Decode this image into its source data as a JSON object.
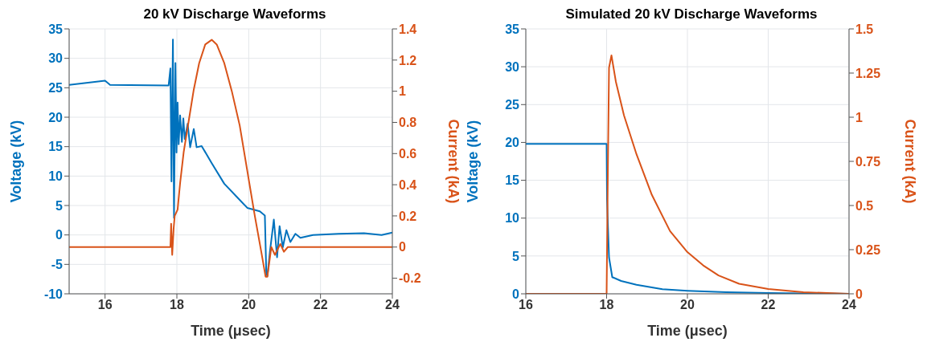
{
  "chart_data": [
    {
      "type": "line",
      "title": "20 kV Discharge Waveforms",
      "xlabel": "Time (μsec)",
      "ylabel": "Voltage (kV)",
      "y2label": "Current (kA)",
      "xlim": [
        15,
        24
      ],
      "xticks": [
        16,
        18,
        20,
        22,
        24
      ],
      "ylim": [
        -10,
        35
      ],
      "yticks": [
        -10,
        -5,
        0,
        5,
        10,
        15,
        20,
        25,
        30,
        35
      ],
      "y2lim": [
        -0.3,
        1.4
      ],
      "y2ticks": [
        -0.2,
        0,
        0.2,
        0.4,
        0.6,
        0.8,
        1,
        1.2,
        1.4
      ],
      "grid": true,
      "series": [
        {
          "color": "#0072bd",
          "axis": "y",
          "x": [
            15,
            16,
            16.14,
            17.77,
            17.82,
            17.85,
            17.89,
            17.92,
            17.96,
            17.99,
            18.02,
            18.05,
            18.09,
            18.14,
            18.18,
            18.22,
            18.3,
            18.37,
            18.47,
            18.55,
            18.69,
            18.97,
            19.32,
            19.68,
            19.96,
            20.31,
            20.45,
            20.49,
            20.52,
            20.59,
            20.7,
            20.79,
            20.86,
            20.95,
            21.05,
            21.16,
            21.3,
            21.44,
            21.79,
            22.5,
            23.21,
            23.7,
            24
          ],
          "values": [
            25.5,
            26.2,
            25.5,
            25.4,
            28.3,
            9.1,
            33.2,
            2.9,
            29.2,
            14,
            22.5,
            15.4,
            20.3,
            15.8,
            19.8,
            16.3,
            18.9,
            14.9,
            18,
            14.9,
            15.1,
            12.2,
            8.7,
            6.4,
            4.6,
            4,
            3.3,
            -6.5,
            -7,
            -2.9,
            2.6,
            -3.8,
            1.5,
            -2.1,
            0.8,
            -1.2,
            0.2,
            -0.5,
            0,
            0.2,
            0.3,
            0,
            0.4
          ]
        },
        {
          "color": "#d95319",
          "axis": "y2",
          "x": [
            15,
            17.82,
            17.84,
            17.87,
            17.91,
            17.94,
            18.02,
            18.09,
            18.19,
            18.33,
            18.47,
            18.62,
            18.79,
            18.97,
            19.11,
            19.32,
            19.53,
            19.75,
            19.96,
            20.17,
            20.35,
            20.47,
            20.52,
            20.63,
            20.73,
            20.88,
            20.98,
            21.09,
            24
          ],
          "values": [
            0,
            0,
            0.15,
            -0.05,
            0.12,
            0.2,
            0.24,
            0.41,
            0.61,
            0.81,
            1.01,
            1.18,
            1.3,
            1.33,
            1.3,
            1.18,
            1,
            0.78,
            0.49,
            0.2,
            -0.03,
            -0.19,
            -0.19,
            0,
            -0.05,
            0.02,
            -0.03,
            0,
            0
          ]
        }
      ]
    },
    {
      "type": "line",
      "title": "Simulated 20 kV Discharge Waveforms",
      "xlabel": "Time (μsec)",
      "ylabel": "Voltage (kV)",
      "y2label": "Current (kA)",
      "xlim": [
        16,
        24
      ],
      "xticks": [
        16,
        18,
        20,
        22,
        24
      ],
      "ylim": [
        0,
        35
      ],
      "yticks": [
        0,
        5,
        10,
        15,
        20,
        25,
        30,
        35
      ],
      "y2lim": [
        0,
        1.5
      ],
      "y2ticks": [
        0,
        0.25,
        0.5,
        0.75,
        1,
        1.25,
        1.5
      ],
      "grid": true,
      "series": [
        {
          "color": "#0072bd",
          "axis": "y",
          "x": [
            16,
            18,
            18.01,
            18.06,
            18.14,
            18.36,
            18.74,
            19.38,
            20,
            20.97,
            22,
            24
          ],
          "values": [
            19.8,
            19.8,
            12.5,
            4.8,
            2.2,
            1.7,
            1.2,
            0.6,
            0.4,
            0.2,
            0.1,
            0
          ]
        },
        {
          "color": "#d95319",
          "axis": "y2",
          "x": [
            16,
            18,
            18.03,
            18.06,
            18.12,
            18.23,
            18.43,
            18.74,
            19.12,
            19.57,
            20,
            20.39,
            20.77,
            21.28,
            22,
            22.87,
            24
          ],
          "values": [
            0,
            0,
            0.68,
            1.28,
            1.35,
            1.2,
            1.01,
            0.79,
            0.56,
            0.355,
            0.236,
            0.161,
            0.104,
            0.057,
            0.027,
            0.009,
            0
          ]
        }
      ]
    }
  ]
}
